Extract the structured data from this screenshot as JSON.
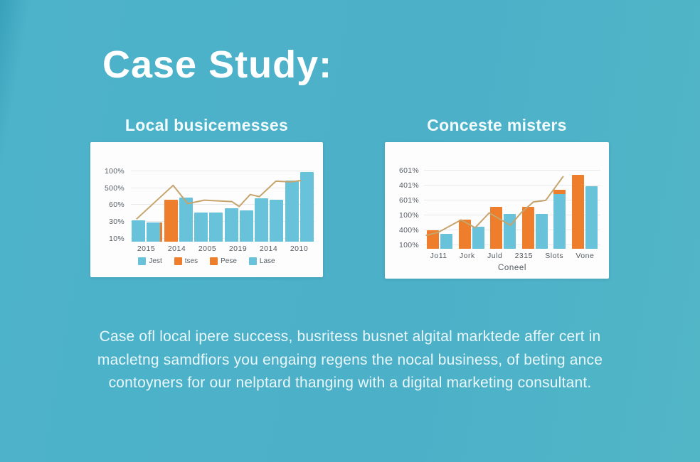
{
  "title": "Case Study:",
  "colors": {
    "background": "#4bb0c8",
    "panel": "#fdfdfe",
    "bar_blue": "#68c2d9",
    "bar_orange": "#ee7e2b",
    "trend_line": "#c6a46d",
    "axis_text": "#555b60",
    "gridline": "#e7eaec",
    "title_text": "#ffffff",
    "heading_text": "#f2fbfd",
    "body_text": "#e9f7fa"
  },
  "chart_data": [
    {
      "type": "bar",
      "title": "Local busicemesses",
      "categories": [
        "2015",
        "2014",
        "2005",
        "2019",
        "2014",
        "2010"
      ],
      "y_tick_labels": [
        "100%",
        "500%",
        "60%",
        "30%",
        "10%"
      ],
      "x_axis_title": "",
      "grid": true,
      "legend_position": "bottom",
      "value_note": "bar heights in % of y-axis span (labels are garbled)",
      "series": [
        {
          "name": "bars-1",
          "type": "bar",
          "values": [
            30,
            60,
            41,
            47,
            62,
            87
          ],
          "point_colors": [
            "blue",
            "orange",
            "blue",
            "blue",
            "blue",
            "blue"
          ],
          "point_caps": [
            null,
            null,
            null,
            null,
            null,
            null
          ],
          "point_edges": [
            null,
            null,
            null,
            null,
            null,
            null
          ]
        },
        {
          "name": "bars-2",
          "type": "bar",
          "values": [
            27,
            63,
            41,
            44,
            60,
            99
          ],
          "point_colors": [
            "blue",
            "blue",
            "blue",
            "blue",
            "blue",
            "blue"
          ],
          "point_caps": [
            null,
            null,
            null,
            null,
            null,
            null
          ],
          "point_edges": [
            "orange",
            null,
            null,
            null,
            null,
            null
          ]
        },
        {
          "name": "trend",
          "type": "line",
          "points": [
            [
              3,
              32
            ],
            [
              23,
              80
            ],
            [
              31,
              54
            ],
            [
              40,
              59
            ],
            [
              55,
              57
            ],
            [
              59,
              50
            ],
            [
              65,
              67
            ],
            [
              70,
              64
            ],
            [
              79,
              86
            ],
            [
              87,
              85
            ],
            [
              93,
              87
            ]
          ]
        }
      ],
      "legend": [
        {
          "color": "blue",
          "label": "Jest"
        },
        {
          "color": "orange",
          "label": "tses"
        },
        {
          "color": "orange",
          "label": "Pese"
        },
        {
          "color": "blue",
          "label": "Lase"
        }
      ]
    },
    {
      "type": "bar",
      "title": "Conceste misters",
      "categories": [
        "Jo11",
        "Jork",
        "Juld",
        "2315",
        "Slots",
        "Vone"
      ],
      "y_tick_labels": [
        "601%",
        "401%",
        "601%",
        "100%",
        "400%",
        "100%"
      ],
      "x_axis_title": "Coneel",
      "grid": true,
      "legend_position": "none",
      "value_note": "bar heights in % of y-axis span (labels are garbled)",
      "series": [
        {
          "name": "bars-1",
          "type": "bar",
          "values": [
            24,
            37,
            54,
            54,
            76,
            95
          ],
          "point_colors": [
            "orange",
            "orange",
            "orange",
            "orange",
            "blue",
            "orange"
          ],
          "point_caps": [
            null,
            null,
            null,
            null,
            6,
            null
          ],
          "point_edges": [
            null,
            null,
            null,
            null,
            null,
            null
          ]
        },
        {
          "name": "bars-2",
          "type": "bar",
          "values": [
            19,
            28,
            45,
            45,
            null,
            80
          ],
          "point_colors": [
            "blue",
            "blue",
            "blue",
            "blue",
            "blue",
            "blue"
          ],
          "point_caps": [
            null,
            null,
            null,
            null,
            null,
            null
          ],
          "point_edges": [
            null,
            null,
            null,
            null,
            null,
            null
          ]
        },
        {
          "name": "trend",
          "type": "line",
          "points": [
            [
              1,
              17
            ],
            [
              8,
              21
            ],
            [
              21,
              37
            ],
            [
              29,
              27
            ],
            [
              37,
              46
            ],
            [
              49,
              30
            ],
            [
              55,
              46
            ],
            [
              62,
              60
            ],
            [
              69,
              62
            ],
            [
              79,
              93
            ]
          ]
        }
      ],
      "legend": []
    }
  ],
  "paragraph": {
    "lines": [
      "Case ofl local ipere success, busritess busnet algital marktede affer cert in",
      "macletng samdfiors you engaing regens the nocal business, of beting ance",
      "contoyners for our nelptard thanging with a digital marketing consultant."
    ]
  }
}
